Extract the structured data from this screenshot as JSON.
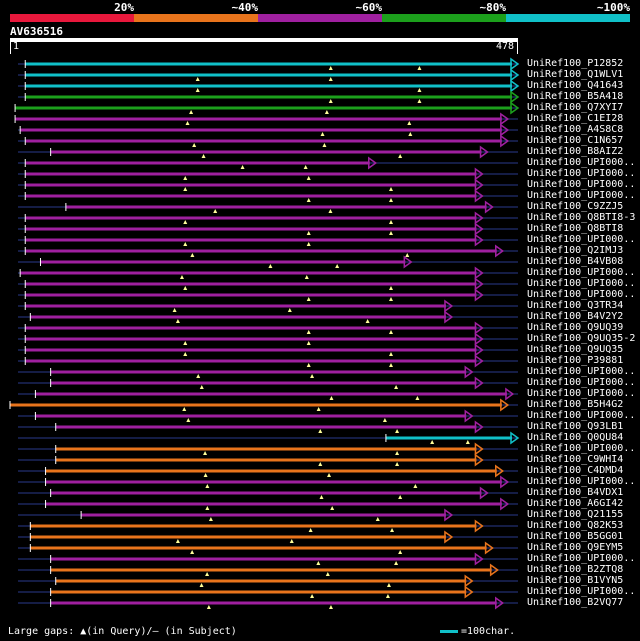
{
  "legend": {
    "bands": [
      {
        "label": "20%",
        "color": "#e8183c"
      },
      {
        "label": "~40%",
        "color": "#e8741c"
      },
      {
        "label": "~60%",
        "color": "#a020a0"
      },
      {
        "label": "~80%",
        "color": "#1ca01c"
      },
      {
        "label": "~100%",
        "color": "#10c0c8"
      }
    ]
  },
  "query": {
    "name": "AV636516",
    "start": "1",
    "end": "478"
  },
  "footer": {
    "gaps_label": "Large gaps: ▲(in Query)/– (in Subject)",
    "scale_label": "=100char."
  },
  "colors": {
    "cyan": "#10c0c8",
    "green": "#1ca01c",
    "purple": "#a020a0",
    "orange": "#e8741c",
    "thin_line": "#2a3a8c",
    "gap_marker": "#ffff99"
  },
  "hits": [
    {
      "label": "UniRef100_P12852",
      "color": "cyan",
      "start": 3,
      "end": 100
    },
    {
      "label": "UniRef100_Q1WLV1",
      "color": "cyan",
      "start": 3,
      "end": 100
    },
    {
      "label": "UniRef100_Q41643",
      "color": "cyan",
      "start": 3,
      "end": 100
    },
    {
      "label": "UniRef100_B5A418",
      "color": "green",
      "start": 3,
      "end": 100
    },
    {
      "label": "UniRef100_Q7XYI7",
      "color": "green",
      "start": 1,
      "end": 100
    },
    {
      "label": "UniRef100_C1EI28",
      "color": "purple",
      "start": 1,
      "end": 98
    },
    {
      "label": "UniRef100_A4S8C8",
      "color": "purple",
      "start": 2,
      "end": 98
    },
    {
      "label": "UniRef100_C1N657",
      "color": "purple",
      "start": 3,
      "end": 98
    },
    {
      "label": "UniRef100_B8AIZ2",
      "color": "purple",
      "start": 8,
      "end": 94
    },
    {
      "label": "UniRef100_UPI000..",
      "color": "purple",
      "start": 3,
      "end": 72
    },
    {
      "label": "UniRef100_UPI000..",
      "color": "purple",
      "start": 3,
      "end": 93
    },
    {
      "label": "UniRef100_UPI000..",
      "color": "purple",
      "start": 3,
      "end": 93
    },
    {
      "label": "UniRef100_UPI000..",
      "color": "purple",
      "start": 3,
      "end": 93
    },
    {
      "label": "UniRef100_C9ZZJ5",
      "color": "purple",
      "start": 11,
      "end": 95
    },
    {
      "label": "UniRef100_Q8BTI8-3",
      "color": "purple",
      "start": 3,
      "end": 93
    },
    {
      "label": "UniRef100_Q8BTI8",
      "color": "purple",
      "start": 3,
      "end": 93
    },
    {
      "label": "UniRef100_UPI000..",
      "color": "purple",
      "start": 3,
      "end": 93
    },
    {
      "label": "UniRef100_Q2IMJ3",
      "color": "purple",
      "start": 3,
      "end": 97
    },
    {
      "label": "UniRef100_B4VB08",
      "color": "purple",
      "start": 6,
      "end": 79
    },
    {
      "label": "UniRef100_UPI000..",
      "color": "purple",
      "start": 2,
      "end": 93
    },
    {
      "label": "UniRef100_UPI000..",
      "color": "purple",
      "start": 3,
      "end": 93
    },
    {
      "label": "UniRef100_UPI000..",
      "color": "purple",
      "start": 3,
      "end": 93
    },
    {
      "label": "UniRef100_Q3TR34",
      "color": "purple",
      "start": 3,
      "end": 87
    },
    {
      "label": "UniRef100_B4V2Y2",
      "color": "purple",
      "start": 4,
      "end": 87
    },
    {
      "label": "UniRef100_Q9UQ39",
      "color": "purple",
      "start": 3,
      "end": 93
    },
    {
      "label": "UniRef100_Q9UQ35-2",
      "color": "purple",
      "start": 3,
      "end": 93
    },
    {
      "label": "UniRef100_Q9UQ35",
      "color": "purple",
      "start": 3,
      "end": 93
    },
    {
      "label": "UniRef100_P39881",
      "color": "purple",
      "start": 3,
      "end": 93
    },
    {
      "label": "UniRef100_UPI000..",
      "color": "purple",
      "start": 8,
      "end": 91
    },
    {
      "label": "UniRef100_UPI000..",
      "color": "purple",
      "start": 8,
      "end": 93
    },
    {
      "label": "UniRef100_UPI000..",
      "color": "purple",
      "start": 5,
      "end": 99
    },
    {
      "label": "UniRef100_B5H4G2",
      "color": "orange",
      "start": 0,
      "end": 98
    },
    {
      "label": "UniRef100_UPI000..",
      "color": "purple",
      "start": 5,
      "end": 91
    },
    {
      "label": "UniRef100_Q93LB1",
      "color": "purple",
      "start": 9,
      "end": 93
    },
    {
      "label": "UniRef100_Q0QU84",
      "color": "cyan",
      "start": 74,
      "end": 100
    },
    {
      "label": "UniRef100_UPI000..",
      "color": "orange",
      "start": 9,
      "end": 93
    },
    {
      "label": "UniRef100_C9WHI4",
      "color": "orange",
      "start": 9,
      "end": 93
    },
    {
      "label": "UniRef100_C4DMD4",
      "color": "orange",
      "start": 7,
      "end": 97
    },
    {
      "label": "UniRef100_UPI000..",
      "color": "purple",
      "start": 7,
      "end": 98
    },
    {
      "label": "UniRef100_B4VDX1",
      "color": "purple",
      "start": 8,
      "end": 94
    },
    {
      "label": "UniRef100_A6GI42",
      "color": "purple",
      "start": 7,
      "end": 98
    },
    {
      "label": "UniRef100_Q21155",
      "color": "purple",
      "start": 14,
      "end": 87
    },
    {
      "label": "UniRef100_Q82K53",
      "color": "orange",
      "start": 4,
      "end": 93
    },
    {
      "label": "UniRef100_B5GG01",
      "color": "orange",
      "start": 4,
      "end": 87
    },
    {
      "label": "UniRef100_Q9EYM5",
      "color": "orange",
      "start": 4,
      "end": 95
    },
    {
      "label": "UniRef100_UPI000..",
      "color": "purple",
      "start": 8,
      "end": 93
    },
    {
      "label": "UniRef100_B2ZTQ8",
      "color": "orange",
      "start": 8,
      "end": 96
    },
    {
      "label": "UniRef100_B1VYN5",
      "color": "orange",
      "start": 9,
      "end": 91
    },
    {
      "label": "UniRef100_UPI000..",
      "color": "orange",
      "start": 8,
      "end": 91
    },
    {
      "label": "UniRef100_B2VQ77",
      "color": "purple",
      "start": 8,
      "end": 97
    }
  ]
}
